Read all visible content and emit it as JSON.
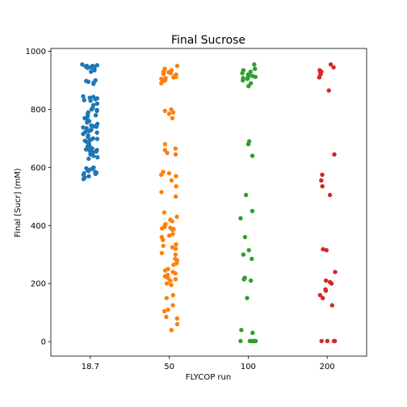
{
  "chart_data": {
    "type": "scatter",
    "title": "Final Sucrose",
    "xlabel": "FLYCOP run",
    "ylabel": "Final [Sucr] (mM)",
    "categories": [
      "18.7",
      "50",
      "100",
      "200"
    ],
    "ylim": [
      -50,
      1010
    ],
    "yticks": [
      0,
      200,
      400,
      600,
      800,
      1000
    ],
    "grid": false,
    "legend": "none",
    "series": [
      {
        "color": "#1f77b4",
        "values": [
          955,
          952,
          950,
          948,
          947,
          945,
          943,
          940,
          935,
          930,
          945,
          950,
          900,
          898,
          895,
          892,
          888,
          845,
          843,
          840,
          838,
          835,
          832,
          830,
          820,
          815,
          805,
          800,
          798,
          795,
          790,
          785,
          780,
          776,
          770,
          765,
          760,
          755,
          750,
          745,
          742,
          740,
          738,
          735,
          730,
          728,
          725,
          722,
          720,
          715,
          710,
          705,
          700,
          698,
          695,
          692,
          690,
          688,
          685,
          680,
          672,
          668,
          665,
          662,
          660,
          658,
          655,
          652,
          650,
          648,
          645,
          640,
          635,
          630,
          600,
          597,
          595,
          592,
          590,
          588,
          585,
          582,
          580,
          578,
          575,
          570,
          565,
          560
        ]
      },
      {
        "color": "#ff7f0e",
        "values": [
          950,
          940,
          935,
          930,
          928,
          925,
          922,
          920,
          918,
          916,
          914,
          912,
          910,
          908,
          905,
          900,
          895,
          890,
          800,
          795,
          790,
          785,
          770,
          680,
          665,
          660,
          650,
          645,
          585,
          580,
          575,
          570,
          555,
          535,
          515,
          500,
          445,
          430,
          420,
          415,
          405,
          400,
          395,
          392,
          390,
          388,
          385,
          370,
          365,
          360,
          350,
          335,
          330,
          325,
          320,
          305,
          300,
          285,
          280,
          270,
          265,
          250,
          245,
          240,
          235,
          230,
          225,
          220,
          215,
          210,
          200,
          195,
          160,
          150,
          125,
          110,
          105,
          85,
          80,
          60,
          40
        ]
      },
      {
        "color": "#2ca02c",
        "values": [
          955,
          940,
          935,
          930,
          925,
          920,
          918,
          915,
          912,
          910,
          908,
          905,
          900,
          890,
          880,
          690,
          680,
          640,
          505,
          450,
          425,
          360,
          315,
          300,
          285,
          220,
          215,
          210,
          150,
          40,
          30,
          2,
          2,
          2,
          2,
          2,
          2,
          2,
          2
        ]
      },
      {
        "color": "#d62728",
        "values": [
          955,
          945,
          935,
          930,
          928,
          925,
          920,
          910,
          865,
          645,
          575,
          555,
          535,
          505,
          318,
          315,
          240,
          210,
          205,
          200,
          180,
          175,
          160,
          150,
          125,
          2,
          2,
          2,
          2
        ]
      }
    ]
  }
}
